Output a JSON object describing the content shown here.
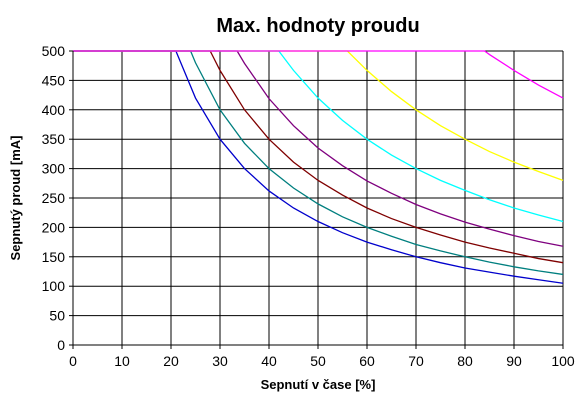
{
  "chart_data": {
    "type": "line",
    "title": "Max. hodnoty proudu",
    "xlabel": "Sepnutí v čase [%]",
    "ylabel": "Sepnutý proud [mA]",
    "xlim": [
      0,
      100
    ],
    "ylim": [
      0,
      500
    ],
    "xticks": [
      0,
      10,
      20,
      30,
      40,
      50,
      60,
      70,
      80,
      90,
      100
    ],
    "yticks": [
      0,
      50,
      100,
      150,
      200,
      250,
      300,
      350,
      400,
      450,
      500
    ],
    "grid": true,
    "legend": "none",
    "series": [
      {
        "color": "#0000cc",
        "x": [
          0,
          21,
          25,
          30,
          35,
          40,
          45,
          50,
          55,
          60,
          65,
          70,
          75,
          80,
          85,
          90,
          95,
          100
        ],
        "y": [
          500,
          500,
          420,
          350,
          300,
          262,
          233,
          210,
          191,
          175,
          162,
          150,
          140,
          131,
          124,
          117,
          111,
          105
        ]
      },
      {
        "color": "#007f7f",
        "x": [
          0,
          24,
          25,
          30,
          35,
          40,
          45,
          50,
          55,
          60,
          65,
          70,
          75,
          80,
          85,
          90,
          95,
          100
        ],
        "y": [
          500,
          500,
          480,
          400,
          343,
          300,
          267,
          240,
          218,
          200,
          185,
          171,
          160,
          150,
          141,
          133,
          126,
          120
        ]
      },
      {
        "color": "#7f0000",
        "x": [
          0,
          28,
          30,
          35,
          40,
          45,
          50,
          55,
          60,
          65,
          70,
          75,
          80,
          85,
          90,
          95,
          100
        ],
        "y": [
          500,
          500,
          467,
          400,
          350,
          311,
          280,
          255,
          233,
          215,
          200,
          187,
          175,
          165,
          156,
          147,
          140
        ]
      },
      {
        "color": "#7f007f",
        "x": [
          0,
          33.5,
          35,
          40,
          45,
          50,
          55,
          60,
          65,
          70,
          75,
          80,
          85,
          90,
          95,
          100
        ],
        "y": [
          500,
          500,
          479,
          419,
          373,
          335,
          305,
          279,
          258,
          239,
          223,
          209,
          197,
          186,
          176,
          168
        ]
      },
      {
        "color": "#00ffff",
        "x": [
          0,
          42,
          45,
          50,
          55,
          60,
          65,
          70,
          75,
          80,
          85,
          90,
          95,
          100
        ],
        "y": [
          500,
          500,
          467,
          420,
          382,
          350,
          323,
          300,
          280,
          263,
          247,
          233,
          221,
          210
        ]
      },
      {
        "color": "#ffff00",
        "x": [
          0,
          56,
          60,
          65,
          70,
          75,
          80,
          85,
          90,
          95,
          100
        ],
        "y": [
          500,
          500,
          467,
          431,
          400,
          373,
          350,
          329,
          311,
          295,
          280
        ]
      },
      {
        "color": "#ff00ff",
        "x": [
          0,
          84,
          85,
          90,
          95,
          100
        ],
        "y": [
          500,
          500,
          494,
          467,
          442,
          420
        ]
      }
    ]
  }
}
